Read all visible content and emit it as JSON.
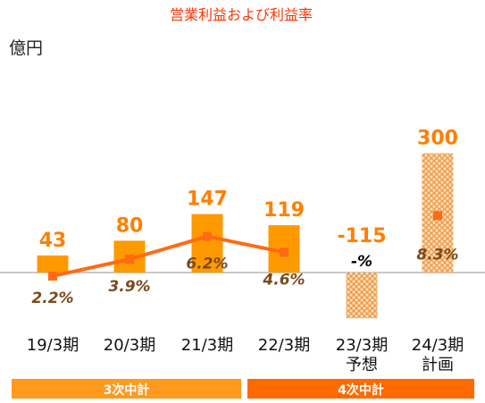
{
  "chart_data": {
    "type": "bar",
    "title": "営業利益および利益率",
    "unit": "億円",
    "categories": [
      [
        "19/3期"
      ],
      [
        "20/3期"
      ],
      [
        "21/3期"
      ],
      [
        "22/3期"
      ],
      [
        "23/3期",
        "予想"
      ],
      [
        "24/3期",
        "計画"
      ]
    ],
    "series": [
      {
        "kind": "bar",
        "values": [
          43,
          80,
          147,
          119,
          -115,
          300
        ],
        "value_labels": [
          "43",
          "80",
          "147",
          "119",
          "-115",
          "300"
        ],
        "bar_style": [
          "solid",
          "solid",
          "solid",
          "solid",
          "hatched",
          "hatched"
        ]
      },
      {
        "kind": "line",
        "values_pct": [
          2.2,
          3.9,
          6.2,
          4.6,
          null,
          8.3
        ],
        "labels": [
          "2.2%",
          "3.9%",
          "6.2%",
          "4.6%",
          "-%",
          "8.3%"
        ],
        "line_segments": [
          [
            0,
            1,
            2,
            3
          ]
        ],
        "marker_only": [
          5
        ]
      }
    ],
    "periods": [
      {
        "label": "3次中計",
        "from": 0,
        "to": 2
      },
      {
        "label": "4次中計",
        "from": 3,
        "to": 5
      }
    ],
    "colors": {
      "bar": "#ff9900",
      "bar_hatch_bg": "#f9dcc0",
      "bar_hatch_line": "#f19a3e",
      "line": "#ff6a14",
      "value_label": "#ff7f00",
      "rate_label": "#7a4a1e",
      "title": "#ff3300",
      "period_1": "#ff9a1f",
      "period_2": "#ff6a00",
      "axis": "#a6a6a6"
    }
  }
}
